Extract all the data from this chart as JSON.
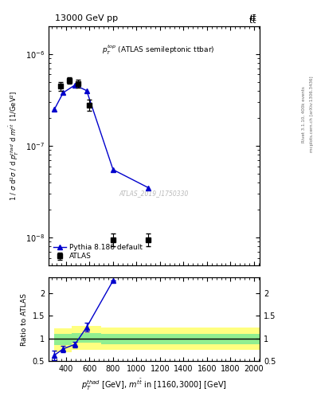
{
  "atlas_x": [
    350,
    425,
    500,
    600,
    800,
    1100
  ],
  "atlas_y": [
    4.5e-07,
    5.2e-07,
    4.8e-07,
    2.8e-07,
    9.5e-09,
    9.5e-09
  ],
  "atlas_yerr": [
    5e-08,
    4e-08,
    5e-08,
    4e-08,
    1.5e-09,
    1.5e-09
  ],
  "pythia_x": [
    300,
    375,
    475,
    575,
    800,
    1100
  ],
  "pythia_y": [
    2.5e-07,
    3.8e-07,
    4.6e-07,
    4e-07,
    5.5e-08,
    3.5e-08
  ],
  "ratio_pythia_x": [
    300,
    375,
    475,
    575,
    800
  ],
  "ratio_pythia_y": [
    0.63,
    0.77,
    0.87,
    1.25,
    2.28
  ],
  "ratio_pythia_yerr": [
    0.11,
    0.07,
    0.06,
    0.09,
    0.0
  ],
  "band_yellow_segs": [
    {
      "xlo": 300,
      "xhi": 450,
      "ylo": 0.7,
      "yhi": 1.22
    },
    {
      "xlo": 450,
      "xhi": 700,
      "ylo": 0.75,
      "yhi": 1.28
    },
    {
      "xlo": 700,
      "xhi": 2050,
      "ylo": 0.75,
      "yhi": 1.25
    }
  ],
  "band_green_segs": [
    {
      "xlo": 300,
      "xhi": 450,
      "ylo": 0.86,
      "yhi": 1.1
    },
    {
      "xlo": 450,
      "xhi": 700,
      "ylo": 0.9,
      "yhi": 1.12
    },
    {
      "xlo": 700,
      "xhi": 2050,
      "ylo": 0.88,
      "yhi": 1.1
    }
  ],
  "xlim": [
    250,
    2050
  ],
  "ylim_main": [
    5e-09,
    2e-06
  ],
  "ylim_ratio": [
    0.5,
    2.35
  ],
  "color_atlas": "#000000",
  "color_pythia": "#0000cc",
  "color_green": "#90ee90",
  "color_yellow": "#ffff80",
  "bg_color": "#ffffff"
}
